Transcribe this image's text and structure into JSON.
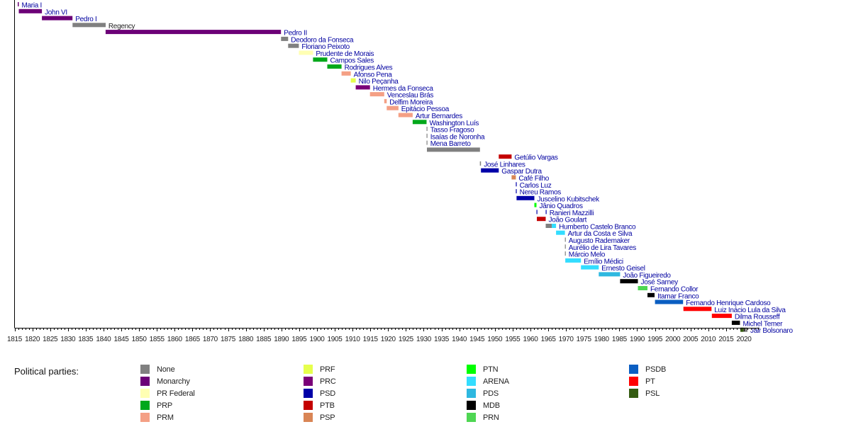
{
  "chart_data": {
    "type": "timeline",
    "title": "",
    "xlabel": "",
    "xlim": [
      1815,
      2024
    ],
    "x_ticks": [
      1815,
      1820,
      1825,
      1830,
      1835,
      1840,
      1845,
      1850,
      1855,
      1860,
      1865,
      1870,
      1875,
      1880,
      1885,
      1890,
      1895,
      1900,
      1905,
      1910,
      1915,
      1920,
      1925,
      1930,
      1935,
      1940,
      1945,
      1950,
      1955,
      1960,
      1965,
      1970,
      1975,
      1980,
      1985,
      1990,
      1995,
      2000,
      2005,
      2010,
      2015,
      2020
    ],
    "rows": [
      {
        "label": "Maria I",
        "segments": [
          {
            "start": 1815.9,
            "end": 1816.2,
            "party": "Monarchy"
          }
        ]
      },
      {
        "label": "John VI",
        "segments": [
          {
            "start": 1816.2,
            "end": 1822.7,
            "party": "Monarchy"
          }
        ]
      },
      {
        "label": "Pedro I",
        "segments": [
          {
            "start": 1822.7,
            "end": 1831.3,
            "party": "Monarchy"
          }
        ]
      },
      {
        "label": "Regency",
        "plain": true,
        "segments": [
          {
            "start": 1831.3,
            "end": 1840.6,
            "party": "None"
          }
        ]
      },
      {
        "label": "Pedro II",
        "segments": [
          {
            "start": 1840.6,
            "end": 1889.9,
            "party": "Monarchy"
          }
        ]
      },
      {
        "label": "Deodoro da Fonseca",
        "segments": [
          {
            "start": 1889.9,
            "end": 1891.9,
            "party": "None"
          }
        ]
      },
      {
        "label": "Floriano Peixoto",
        "segments": [
          {
            "start": 1891.9,
            "end": 1894.9,
            "party": "None"
          }
        ]
      },
      {
        "label": "Prudente de Morais",
        "segments": [
          {
            "start": 1894.9,
            "end": 1898.9,
            "party": "PR Federal"
          }
        ]
      },
      {
        "label": "Campos Sales",
        "segments": [
          {
            "start": 1898.9,
            "end": 1902.9,
            "party": "PRP"
          }
        ]
      },
      {
        "label": "Rodrigues Alves",
        "segments": [
          {
            "start": 1902.9,
            "end": 1906.9,
            "party": "PRP"
          }
        ]
      },
      {
        "label": "Afonso Pena",
        "segments": [
          {
            "start": 1906.9,
            "end": 1909.5,
            "party": "PRM"
          }
        ]
      },
      {
        "label": "Nilo Peçanha",
        "segments": [
          {
            "start": 1909.5,
            "end": 1910.9,
            "party": "PRF"
          }
        ]
      },
      {
        "label": "Hermes da Fonseca",
        "segments": [
          {
            "start": 1910.9,
            "end": 1914.9,
            "party": "PRC"
          }
        ]
      },
      {
        "label": "Venceslau Brás",
        "segments": [
          {
            "start": 1914.9,
            "end": 1918.9,
            "party": "PRM"
          }
        ]
      },
      {
        "label": "Delfim Moreira",
        "segments": [
          {
            "start": 1918.9,
            "end": 1919.6,
            "party": "PRM"
          }
        ]
      },
      {
        "label": "Epitácio Pessoa",
        "segments": [
          {
            "start": 1919.6,
            "end": 1922.9,
            "party": "PRM"
          }
        ]
      },
      {
        "label": "Artur Bernardes",
        "segments": [
          {
            "start": 1922.9,
            "end": 1926.9,
            "party": "PRM"
          }
        ]
      },
      {
        "label": "Washington Luís",
        "segments": [
          {
            "start": 1926.9,
            "end": 1930.8,
            "party": "PRP"
          }
        ]
      },
      {
        "label": "Tasso Fragoso",
        "segments": [
          {
            "start": 1930.8,
            "end": 1930.9,
            "party": "None"
          }
        ]
      },
      {
        "label": "Isaías de Noronha",
        "segments": [
          {
            "start": 1930.8,
            "end": 1930.9,
            "party": "None"
          }
        ]
      },
      {
        "label": "Mena Barreto",
        "segments": [
          {
            "start": 1930.8,
            "end": 1930.9,
            "party": "None"
          }
        ]
      },
      {
        "label": "",
        "segments": [
          {
            "start": 1930.9,
            "end": 1945.8,
            "party": "None"
          }
        ]
      },
      {
        "label": "Getúlio Vargas",
        "segments": [
          {
            "start": 1951.1,
            "end": 1954.7,
            "party": "PTB"
          }
        ]
      },
      {
        "label": "José Linhares",
        "segments": [
          {
            "start": 1945.8,
            "end": 1946.1,
            "party": "None"
          }
        ]
      },
      {
        "label": "Gaspar Dutra",
        "segments": [
          {
            "start": 1946.1,
            "end": 1951.1,
            "party": "PSD"
          }
        ]
      },
      {
        "label": "Café Filho",
        "segments": [
          {
            "start": 1954.7,
            "end": 1955.9,
            "party": "PSP"
          }
        ]
      },
      {
        "label": "Carlos Luz",
        "segments": [
          {
            "start": 1955.9,
            "end": 1956.0,
            "party": "PSD"
          }
        ]
      },
      {
        "label": "Nereu Ramos",
        "segments": [
          {
            "start": 1955.9,
            "end": 1956.1,
            "party": "PSD"
          }
        ]
      },
      {
        "label": "Juscelino Kubitschek",
        "segments": [
          {
            "start": 1956.1,
            "end": 1961.1,
            "party": "PSD"
          }
        ]
      },
      {
        "label": "Jânio Quadros",
        "segments": [
          {
            "start": 1961.1,
            "end": 1961.7,
            "party": "PTN"
          }
        ]
      },
      {
        "label": "Ranieri Mazzilli",
        "segments": [
          {
            "start": 1961.7,
            "end": 1961.8,
            "party": "PSD"
          },
          {
            "start": 1964.3,
            "end": 1964.4,
            "party": "PSD"
          }
        ]
      },
      {
        "label": "João Goulart",
        "segments": [
          {
            "start": 1961.8,
            "end": 1964.3,
            "party": "PTB"
          }
        ]
      },
      {
        "label": "Humberto Castelo Branco",
        "segments": [
          {
            "start": 1964.3,
            "end": 1966.0,
            "party": "None"
          },
          {
            "start": 1966.0,
            "end": 1967.2,
            "party": "ARENA"
          }
        ]
      },
      {
        "label": "Artur da Costa e Silva",
        "segments": [
          {
            "start": 1967.2,
            "end": 1969.7,
            "party": "ARENA"
          }
        ]
      },
      {
        "label": "Augusto Rademaker",
        "segments": [
          {
            "start": 1969.7,
            "end": 1969.9,
            "party": "None"
          }
        ]
      },
      {
        "label": "Aurélio de Lira Tavares",
        "segments": [
          {
            "start": 1969.7,
            "end": 1969.9,
            "party": "None"
          }
        ]
      },
      {
        "label": "Márcio Melo",
        "segments": [
          {
            "start": 1969.7,
            "end": 1969.9,
            "party": "None"
          }
        ]
      },
      {
        "label": "Emílio Médici",
        "segments": [
          {
            "start": 1969.8,
            "end": 1974.2,
            "party": "ARENA"
          }
        ]
      },
      {
        "label": "Ernesto Geisel",
        "segments": [
          {
            "start": 1974.2,
            "end": 1979.2,
            "party": "ARENA"
          }
        ]
      },
      {
        "label": "João Figueiredo",
        "segments": [
          {
            "start": 1979.2,
            "end": 1985.2,
            "party": "PDS"
          }
        ]
      },
      {
        "label": "José Sarney",
        "segments": [
          {
            "start": 1985.2,
            "end": 1990.2,
            "party": "MDB"
          }
        ]
      },
      {
        "label": "Fernando Collor",
        "segments": [
          {
            "start": 1990.2,
            "end": 1992.9,
            "party": "PRN"
          }
        ]
      },
      {
        "label": "Itamar Franco",
        "segments": [
          {
            "start": 1992.9,
            "end": 1994.9,
            "party": "MDB"
          }
        ]
      },
      {
        "label": "Fernando Henrique Cardoso",
        "segments": [
          {
            "start": 1995.0,
            "end": 2002.9,
            "party": "PSDB"
          }
        ]
      },
      {
        "label": "Luiz Inácio Lula da Silva",
        "segments": [
          {
            "start": 2003.0,
            "end": 2010.9,
            "party": "PT"
          }
        ]
      },
      {
        "label": "Dilma Rousseff",
        "segments": [
          {
            "start": 2011.0,
            "end": 2016.6,
            "party": "PT"
          }
        ]
      },
      {
        "label": "Michel Temer",
        "segments": [
          {
            "start": 2016.6,
            "end": 2018.9,
            "party": "MDB"
          }
        ]
      },
      {
        "label": "Jair Bolsonaro",
        "segments": [
          {
            "start": 2019.0,
            "end": 2019.9,
            "party": "PSL"
          },
          {
            "start": 2019.9,
            "end": 2021.0,
            "party": "None"
          }
        ]
      }
    ],
    "legend": {
      "title": "Political parties:",
      "position": "bottom",
      "items": [
        {
          "name": "None",
          "color": "#808080"
        },
        {
          "name": "Monarchy",
          "color": "#6c0077"
        },
        {
          "name": "PR Federal",
          "color": "#ffffb3"
        },
        {
          "name": "PRP",
          "color": "#00a81b"
        },
        {
          "name": "PRM",
          "color": "#f4a085"
        },
        {
          "name": "PRF",
          "color": "#e6ff4d"
        },
        {
          "name": "PRC",
          "color": "#7a0078"
        },
        {
          "name": "PSD",
          "color": "#0000a8"
        },
        {
          "name": "PTB",
          "color": "#c40000"
        },
        {
          "name": "PSP",
          "color": "#d98555"
        },
        {
          "name": "PTN",
          "color": "#00ff00"
        },
        {
          "name": "ARENA",
          "color": "#33ddff"
        },
        {
          "name": "PDS",
          "color": "#2eb8e0"
        },
        {
          "name": "MDB",
          "color": "#000000"
        },
        {
          "name": "PRN",
          "color": "#4fd653"
        },
        {
          "name": "PSDB",
          "color": "#0a5ec2"
        },
        {
          "name": "PT",
          "color": "#ff0000"
        },
        {
          "name": "PSL",
          "color": "#355c12"
        }
      ]
    }
  }
}
